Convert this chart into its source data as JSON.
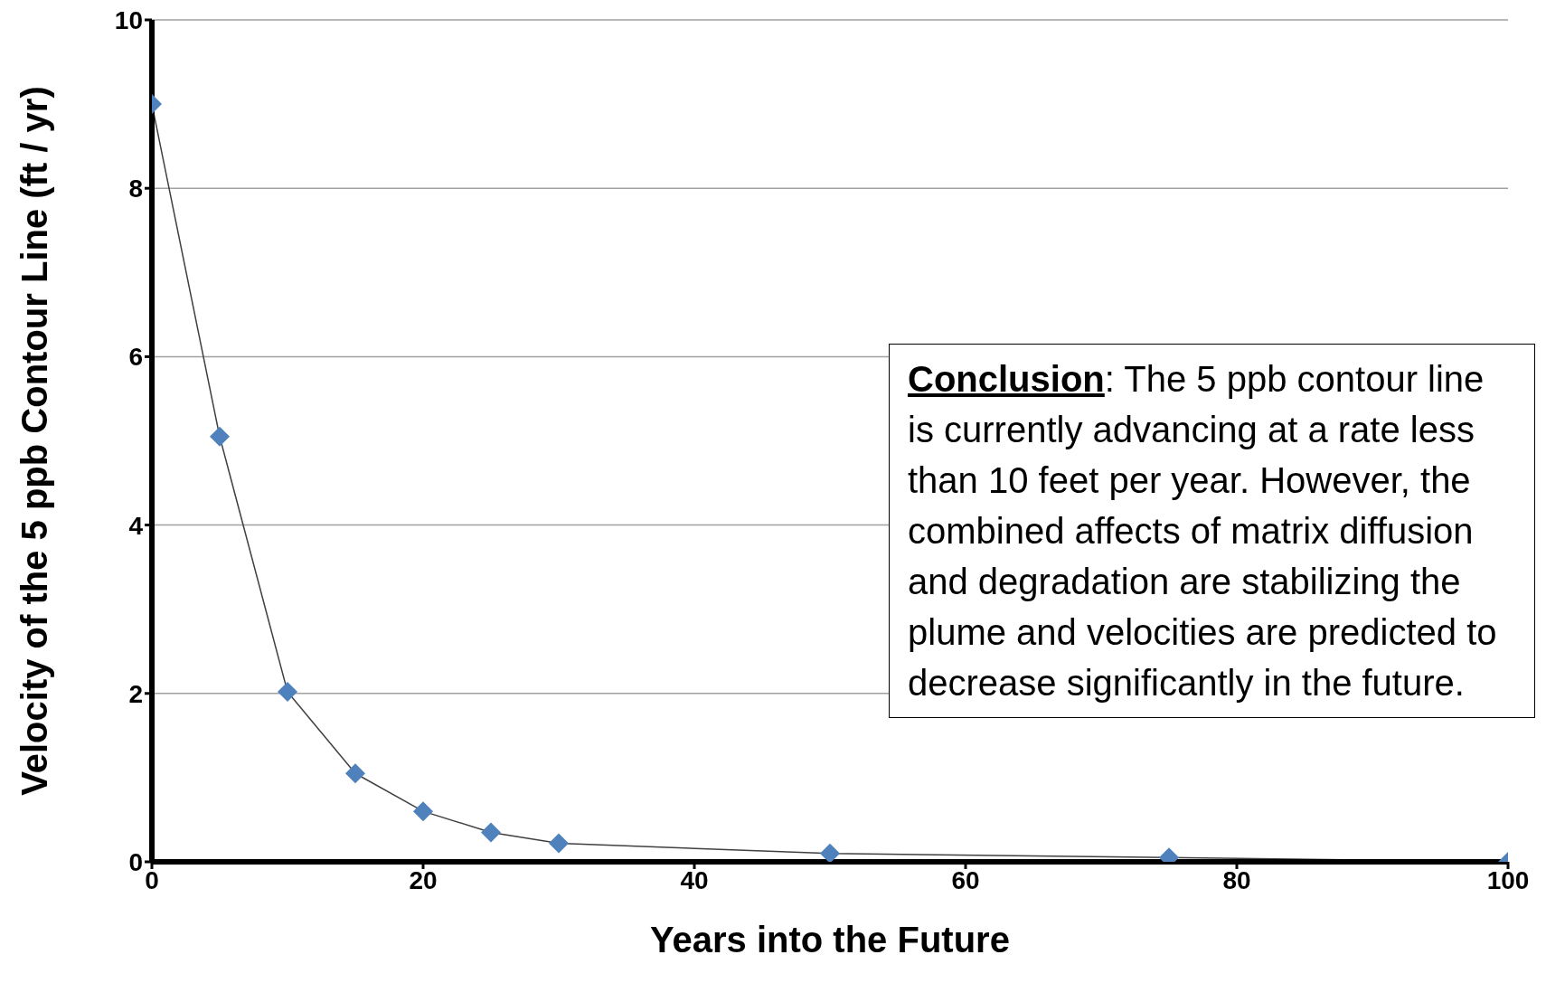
{
  "chart_data": {
    "type": "line",
    "xlabel": "Years into the Future",
    "ylabel": "Velocity of the 5 ppb Contour Line (ft / yr)",
    "x": [
      0,
      5,
      10,
      15,
      20,
      25,
      30,
      50,
      75,
      100
    ],
    "series": [
      {
        "color": "#4f81bd",
        "values": [
          9,
          5.05,
          2.02,
          1.05,
          0.6,
          0.35,
          0.22,
          0.1,
          0.05,
          0
        ]
      }
    ],
    "xlim": [
      0,
      100
    ],
    "xticks": [
      0,
      20,
      40,
      60,
      80,
      100
    ],
    "ylim": [
      0,
      10
    ],
    "yticks": [
      0,
      2,
      4,
      6,
      8,
      10
    ],
    "grid": "y",
    "marker": "diamond",
    "line_style": "solid",
    "annotations": [
      "Conclusion: The 5 ppb contour line is currently advancing at a rate less than 10 feet per year. However, the combined affects of matrix diffusion and degradation are stabilizing the plume and velocities are predicted to decrease significantly in the future."
    ]
  }
}
